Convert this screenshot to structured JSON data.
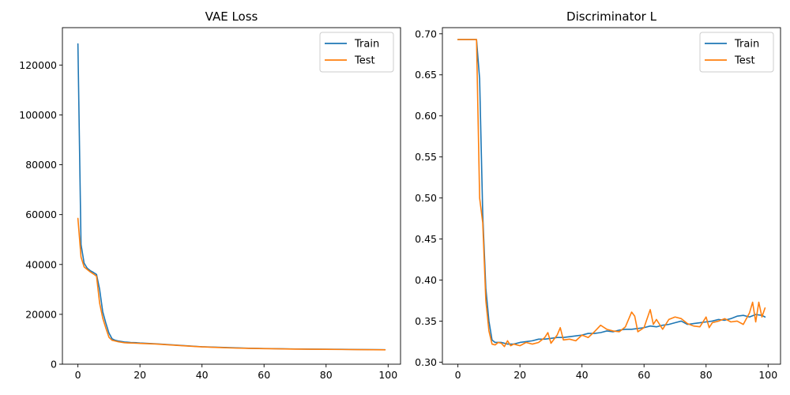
{
  "chart_data": [
    {
      "type": "line",
      "title": "VAE Loss",
      "xlabel": "",
      "ylabel": "",
      "xlim": [
        -5,
        104
      ],
      "ylim": [
        0,
        135000
      ],
      "xticks": [
        0,
        20,
        40,
        60,
        80,
        100
      ],
      "yticks": [
        0,
        20000,
        40000,
        60000,
        80000,
        100000,
        120000
      ],
      "ytick_labels": [
        "0",
        "20000",
        "40000",
        "60000",
        "80000",
        "100000",
        "120000"
      ],
      "legend_position": "top-right",
      "series": [
        {
          "name": "Train",
          "color": "#1f77b4",
          "x": [
            0,
            1,
            2,
            3,
            4,
            5,
            6,
            7,
            8,
            9,
            10,
            11,
            12,
            13,
            14,
            15,
            16,
            17,
            18,
            19,
            20,
            25,
            30,
            35,
            40,
            45,
            50,
            55,
            60,
            65,
            70,
            75,
            80,
            85,
            90,
            95,
            99
          ],
          "values": [
            128500,
            48000,
            40500,
            38500,
            37500,
            36800,
            36000,
            30000,
            21000,
            16500,
            12500,
            10200,
            9600,
            9300,
            9100,
            8900,
            8800,
            8700,
            8650,
            8600,
            8500,
            8200,
            7800,
            7400,
            7000,
            6800,
            6600,
            6400,
            6300,
            6200,
            6100,
            6050,
            6000,
            5950,
            5900,
            5850,
            5800
          ]
        },
        {
          "name": "Test",
          "color": "#ff7f0e",
          "x": [
            0,
            1,
            2,
            3,
            4,
            5,
            6,
            7,
            8,
            9,
            10,
            11,
            12,
            13,
            14,
            15,
            16,
            17,
            18,
            19,
            20,
            25,
            30,
            35,
            40,
            45,
            50,
            55,
            60,
            65,
            70,
            75,
            80,
            85,
            90,
            95,
            99
          ],
          "values": [
            58500,
            43000,
            39000,
            38000,
            37000,
            36200,
            35300,
            24500,
            18500,
            14500,
            10800,
            9600,
            9300,
            9000,
            8800,
            8600,
            8550,
            8500,
            8450,
            8400,
            8350,
            8100,
            7700,
            7300,
            6950,
            6700,
            6500,
            6350,
            6250,
            6150,
            6050,
            6000,
            5950,
            5900,
            5850,
            5800,
            5750
          ]
        }
      ]
    },
    {
      "type": "line",
      "title": "Discriminator L",
      "xlabel": "",
      "ylabel": "",
      "xlim": [
        -5,
        104
      ],
      "ylim": [
        0.2975,
        0.7075
      ],
      "xticks": [
        0,
        20,
        40,
        60,
        80,
        100
      ],
      "yticks": [
        0.3,
        0.35,
        0.4,
        0.45,
        0.5,
        0.55,
        0.6,
        0.65,
        0.7
      ],
      "ytick_labels": [
        "0.30",
        "0.35",
        "0.40",
        "0.45",
        "0.50",
        "0.55",
        "0.60",
        "0.65",
        "0.70"
      ],
      "legend_position": "top-right",
      "series": [
        {
          "name": "Train",
          "color": "#1f77b4",
          "x": [
            0,
            1,
            2,
            3,
            4,
            5,
            6,
            7,
            8,
            9,
            10,
            11,
            12,
            14,
            16,
            18,
            20,
            22,
            24,
            26,
            28,
            30,
            32,
            34,
            36,
            38,
            40,
            42,
            44,
            46,
            48,
            50,
            52,
            54,
            56,
            58,
            60,
            62,
            64,
            66,
            68,
            70,
            72,
            74,
            76,
            78,
            80,
            82,
            84,
            86,
            88,
            90,
            92,
            94,
            96,
            98,
            99
          ],
          "values": [
            0.693,
            0.693,
            0.693,
            0.693,
            0.693,
            0.693,
            0.693,
            0.645,
            0.48,
            0.39,
            0.35,
            0.327,
            0.324,
            0.324,
            0.322,
            0.322,
            0.324,
            0.325,
            0.326,
            0.328,
            0.328,
            0.329,
            0.33,
            0.33,
            0.331,
            0.332,
            0.333,
            0.335,
            0.335,
            0.336,
            0.338,
            0.337,
            0.339,
            0.34,
            0.34,
            0.341,
            0.342,
            0.344,
            0.343,
            0.345,
            0.346,
            0.348,
            0.35,
            0.346,
            0.347,
            0.348,
            0.349,
            0.35,
            0.352,
            0.351,
            0.353,
            0.356,
            0.357,
            0.355,
            0.358,
            0.357,
            0.355
          ]
        },
        {
          "name": "Test",
          "color": "#ff7f0e",
          "x": [
            0,
            1,
            2,
            3,
            4,
            5,
            6,
            7,
            8,
            9,
            10,
            11,
            12,
            13,
            14,
            15,
            16,
            17,
            18,
            19,
            20,
            22,
            24,
            26,
            28,
            29,
            30,
            32,
            33,
            34,
            36,
            38,
            40,
            42,
            44,
            46,
            48,
            50,
            52,
            54,
            56,
            57,
            58,
            60,
            62,
            63,
            64,
            66,
            68,
            70,
            72,
            74,
            76,
            78,
            80,
            81,
            82,
            84,
            86,
            88,
            90,
            92,
            94,
            95,
            96,
            97,
            98,
            99
          ],
          "values": [
            0.693,
            0.693,
            0.693,
            0.693,
            0.693,
            0.693,
            0.693,
            0.5,
            0.47,
            0.375,
            0.338,
            0.322,
            0.321,
            0.324,
            0.323,
            0.319,
            0.326,
            0.32,
            0.322,
            0.321,
            0.32,
            0.324,
            0.322,
            0.324,
            0.33,
            0.336,
            0.323,
            0.333,
            0.342,
            0.327,
            0.328,
            0.326,
            0.333,
            0.33,
            0.337,
            0.345,
            0.34,
            0.338,
            0.337,
            0.343,
            0.361,
            0.356,
            0.337,
            0.342,
            0.364,
            0.346,
            0.352,
            0.34,
            0.352,
            0.355,
            0.353,
            0.347,
            0.344,
            0.343,
            0.355,
            0.342,
            0.348,
            0.35,
            0.353,
            0.349,
            0.35,
            0.346,
            0.36,
            0.373,
            0.349,
            0.373,
            0.355,
            0.366
          ]
        }
      ]
    }
  ]
}
